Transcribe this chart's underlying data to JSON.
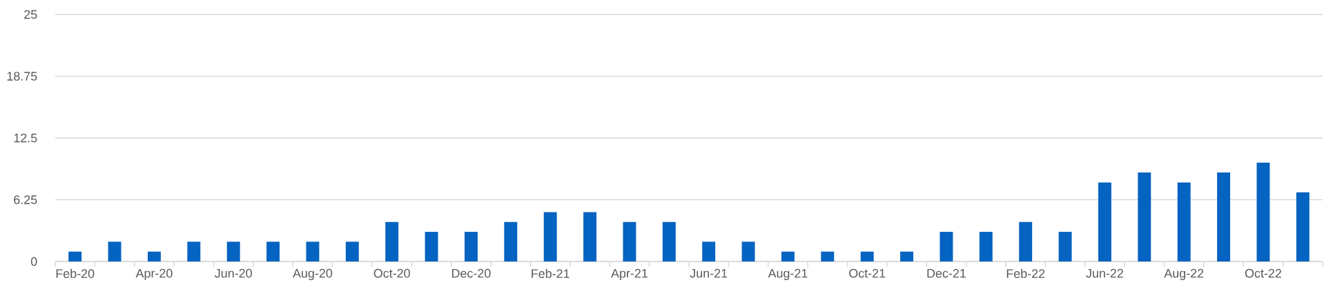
{
  "chart_data": {
    "type": "bar",
    "categories": [
      "Feb-20",
      null,
      "Apr-20",
      null,
      "Jun-20",
      null,
      "Aug-20",
      null,
      "Oct-20",
      null,
      "Dec-20",
      null,
      "Feb-21",
      null,
      "Apr-21",
      null,
      "Jun-21",
      null,
      "Aug-21",
      null,
      "Oct-21",
      null,
      "Dec-21",
      null,
      "Feb-22",
      null,
      "Jun-22",
      null,
      "Aug-22",
      null,
      "Oct-22",
      null
    ],
    "values": [
      1,
      2,
      1,
      2,
      2,
      2,
      2,
      2,
      4,
      3,
      3,
      4,
      5,
      5,
      4,
      4,
      2,
      2,
      1,
      1,
      1,
      1,
      3,
      3,
      4,
      3,
      8,
      9,
      8,
      9,
      10,
      7
    ],
    "color": "#0563c1",
    "ylim": [
      0,
      25
    ],
    "yticks": [
      0,
      6.25,
      12.5,
      18.75,
      25
    ],
    "grid": "y"
  }
}
